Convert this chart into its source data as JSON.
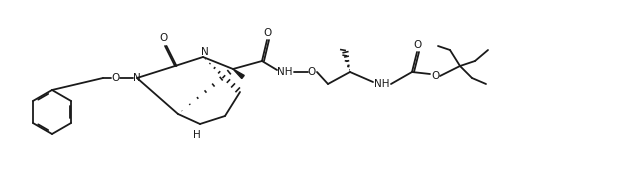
{
  "background_color": "#ffffff",
  "line_color": "#1a1a1a",
  "line_width": 1.3,
  "figure_width": 6.2,
  "figure_height": 1.74,
  "dpi": 100,
  "atoms": {
    "O_carbonyl_label": "O",
    "N_ring_label": "N",
    "NH_amide_label": "NH",
    "O_oxy_label": "O",
    "NH_boc_label": "NH",
    "O_boc_ester": "O",
    "O_boc_carb": "O",
    "H_stereo": "H"
  }
}
